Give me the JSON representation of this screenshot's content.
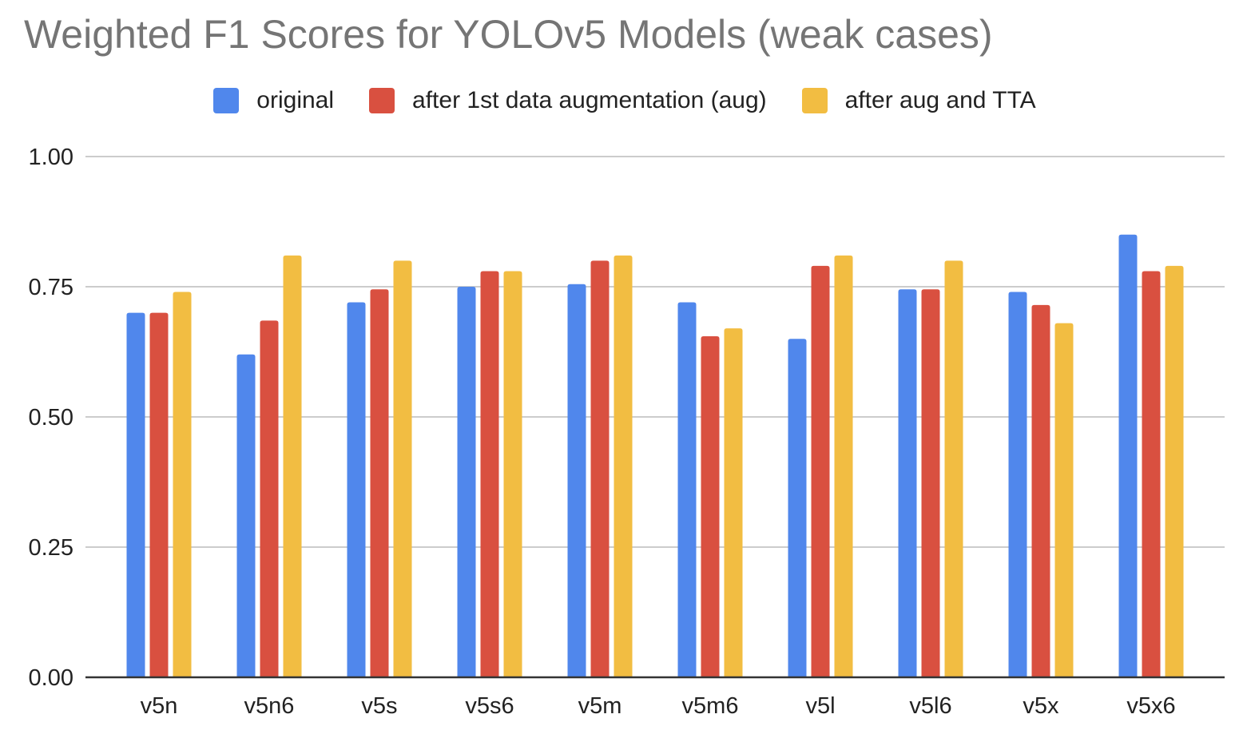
{
  "chart_data": {
    "type": "bar",
    "title": "Weighted F1 Scores for YOLOv5 Models (weak cases)",
    "xlabel": "",
    "ylabel": "",
    "categories": [
      "v5n",
      "v5n6",
      "v5s",
      "v5s6",
      "v5m",
      "v5m6",
      "v5l",
      "v5l6",
      "v5x",
      "v5x6"
    ],
    "series": [
      {
        "name": "original",
        "color": "#5087EC",
        "values": [
          0.7,
          0.62,
          0.72,
          0.75,
          0.755,
          0.72,
          0.65,
          0.745,
          0.74,
          0.85
        ]
      },
      {
        "name": "after 1st data augmentation (aug)",
        "color": "#D95040",
        "values": [
          0.7,
          0.685,
          0.745,
          0.78,
          0.8,
          0.655,
          0.79,
          0.745,
          0.715,
          0.78
        ]
      },
      {
        "name": "after aug and TTA",
        "color": "#F2BD42",
        "values": [
          0.74,
          0.81,
          0.8,
          0.78,
          0.81,
          0.67,
          0.81,
          0.8,
          0.68,
          0.79
        ]
      }
    ],
    "yticks": [
      "0.00",
      "0.25",
      "0.50",
      "0.75",
      "1.00"
    ],
    "ylim": [
      0,
      1
    ],
    "grid": true,
    "legend_position": "top"
  }
}
